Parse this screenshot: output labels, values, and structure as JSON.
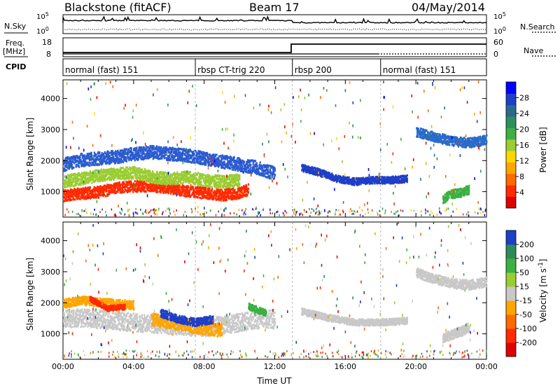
{
  "header": {
    "station": "Blackstone (fitACF)",
    "beam": "Beam 17",
    "date": "04/May/2014"
  },
  "left_labels": {
    "nsky": "N.Sky",
    "freq_line1": "Freq.",
    "freq_line2": "[MHz]",
    "cpid": "CPID"
  },
  "right_labels": {
    "nsearch": "N.Search",
    "nave": "Nave"
  },
  "noise_axis": {
    "left_ticks": [
      "10^5",
      "10^0"
    ],
    "right_ticks": [
      "10^5",
      "10^0"
    ]
  },
  "freq_axis": {
    "left_ticks": [
      "18",
      "8"
    ],
    "right_ticks": [
      "60",
      "0"
    ]
  },
  "cpid_segments": [
    {
      "label": "normal (fast) 151",
      "start_h": 0
    },
    {
      "label": "rbsp CT-trig 220",
      "start_h": 7.5
    },
    {
      "label": "rbsp 200",
      "start_h": 13.0
    },
    {
      "label": "normal (fast) 151",
      "start_h": 18.0
    }
  ],
  "chart_data": [
    {
      "type": "heatmap",
      "name": "power",
      "ylabel": "Slant Range [km]",
      "yticks": [
        1000,
        2000,
        3000,
        4000
      ],
      "ylim": [
        180,
        4600
      ],
      "xlim": [
        0,
        24
      ],
      "colorbar": {
        "label": "Power [dB]",
        "ticks": [
          "4",
          "8",
          "12",
          "16",
          "20",
          "24",
          "28"
        ],
        "colors": [
          "#0000ff",
          "#1e3fc8",
          "#2a6b8c",
          "#2f8f5a",
          "#3cb043",
          "#9acd32",
          "#ffd700",
          "#ffa500",
          "#ff6a00",
          "#ff2a00",
          "#e00000"
        ]
      },
      "bands": [
        {
          "points": [
            [
              0,
              900
            ],
            [
              0.8,
              960
            ],
            [
              2,
              1020
            ],
            [
              3,
              1150
            ],
            [
              4,
              1200
            ],
            [
              5,
              1220
            ],
            [
              6,
              1150
            ],
            [
              7,
              1050
            ],
            [
              8,
              980
            ],
            [
              9,
              920
            ],
            [
              10,
              1000
            ],
            [
              10.5,
              1100
            ]
          ],
          "width": 260,
          "color": "#ff2a00"
        },
        {
          "points": [
            [
              0,
              1350
            ],
            [
              1,
              1450
            ],
            [
              2,
              1550
            ],
            [
              3,
              1600
            ],
            [
              4,
              1650
            ],
            [
              5,
              1500
            ],
            [
              6,
              1450
            ],
            [
              7,
              1500
            ],
            [
              8,
              1400
            ],
            [
              9,
              1350
            ],
            [
              10,
              1400
            ]
          ],
          "width": 280,
          "color": "#9acd32"
        },
        {
          "points": [
            [
              0,
              1900
            ],
            [
              1,
              2050
            ],
            [
              2,
              2100
            ],
            [
              3,
              2150
            ],
            [
              4,
              2250
            ],
            [
              5,
              2300
            ],
            [
              6,
              2250
            ],
            [
              7,
              2200
            ],
            [
              8,
              2100
            ],
            [
              9,
              2000
            ],
            [
              10,
              1900
            ],
            [
              11,
              1800
            ],
            [
              12,
              1600
            ]
          ],
          "width": 300,
          "color": "#2a5bd0"
        },
        {
          "points": [
            [
              13.5,
              1800
            ],
            [
              14.5,
              1650
            ],
            [
              15.5,
              1450
            ],
            [
              16.5,
              1350
            ],
            [
              17.5,
              1400
            ],
            [
              18.5,
              1400
            ],
            [
              19.5,
              1450
            ]
          ],
          "width": 160,
          "color": "#1e3fc8"
        },
        {
          "points": [
            [
              20,
              2950
            ],
            [
              21,
              2800
            ],
            [
              22,
              2650
            ],
            [
              23,
              2600
            ],
            [
              24,
              2700
            ]
          ],
          "width": 220,
          "color": "#2a6bc8"
        },
        {
          "points": [
            [
              21.5,
              800
            ],
            [
              22,
              950
            ],
            [
              22.5,
              1000
            ],
            [
              23,
              1100
            ]
          ],
          "width": 200,
          "color": "#3cb043"
        }
      ]
    },
    {
      "type": "heatmap",
      "name": "velocity",
      "xlabel": "Time UT",
      "ylabel": "Slant Range [km]",
      "xticks": [
        "00:00",
        "04:00",
        "08:00",
        "12:00",
        "16:00",
        "20:00",
        "00:00"
      ],
      "yticks": [
        1000,
        2000,
        3000,
        4000
      ],
      "ylim": [
        180,
        4600
      ],
      "xlim": [
        0,
        24
      ],
      "colorbar": {
        "label": "Velocity [m s^-1]",
        "ticks": [
          "200",
          "100",
          "50",
          "15",
          "-15",
          "-50",
          "-100",
          "-200"
        ],
        "colors": [
          "#1e3fc8",
          "#2e8b57",
          "#3cb043",
          "#9acd32",
          "#c8c8c8",
          "#ffa500",
          "#ff6a00",
          "#ff2a00",
          "#e00000"
        ]
      },
      "bands": [
        {
          "points": [
            [
              0,
              1500
            ],
            [
              1,
              1550
            ],
            [
              2,
              1500
            ],
            [
              3,
              1450
            ],
            [
              4,
              1400
            ],
            [
              5,
              1350
            ],
            [
              6,
              1300
            ],
            [
              7,
              1250
            ],
            [
              8,
              1250
            ],
            [
              9,
              1300
            ],
            [
              10,
              1400
            ],
            [
              11,
              1500
            ],
            [
              12,
              1500
            ]
          ],
          "width": 420,
          "color": "#c8c8c8"
        },
        {
          "points": [
            [
              0,
              2000
            ],
            [
              1,
              2100
            ],
            [
              2,
              2050
            ],
            [
              3,
              2000
            ],
            [
              4,
              1950
            ]
          ],
          "width": 200,
          "color": "#ffa500"
        },
        {
          "points": [
            [
              1.5,
              2150
            ],
            [
              2.5,
              1850
            ],
            [
              3.5,
              1900
            ]
          ],
          "width": 120,
          "color": "#ff2a00"
        },
        {
          "points": [
            [
              5,
              1500
            ],
            [
              6,
              1400
            ],
            [
              7,
              1300
            ],
            [
              8,
              1200
            ],
            [
              9,
              1150
            ]
          ],
          "width": 300,
          "color": "#ffa500"
        },
        {
          "points": [
            [
              5.5,
              1700
            ],
            [
              6.5,
              1500
            ],
            [
              7.5,
              1400
            ],
            [
              8.5,
              1500
            ]
          ],
          "width": 180,
          "color": "#1e3fc8"
        },
        {
          "points": [
            [
              10.5,
              1900
            ],
            [
              11,
              1800
            ],
            [
              11.5,
              1700
            ]
          ],
          "width": 150,
          "color": "#3cb043"
        },
        {
          "points": [
            [
              13.5,
              1750
            ],
            [
              15,
              1550
            ],
            [
              16.5,
              1400
            ],
            [
              18,
              1400
            ],
            [
              19.5,
              1450
            ]
          ],
          "width": 150,
          "color": "#c8c8c8"
        },
        {
          "points": [
            [
              20,
              3000
            ],
            [
              21,
              2800
            ],
            [
              22,
              2650
            ],
            [
              23,
              2600
            ],
            [
              24,
              2700
            ]
          ],
          "width": 220,
          "color": "#c8c8c8"
        },
        {
          "points": [
            [
              21.5,
              900
            ],
            [
              22.5,
              1100
            ],
            [
              23,
              1250
            ]
          ],
          "width": 220,
          "color": "#c8c8c8"
        }
      ]
    }
  ]
}
